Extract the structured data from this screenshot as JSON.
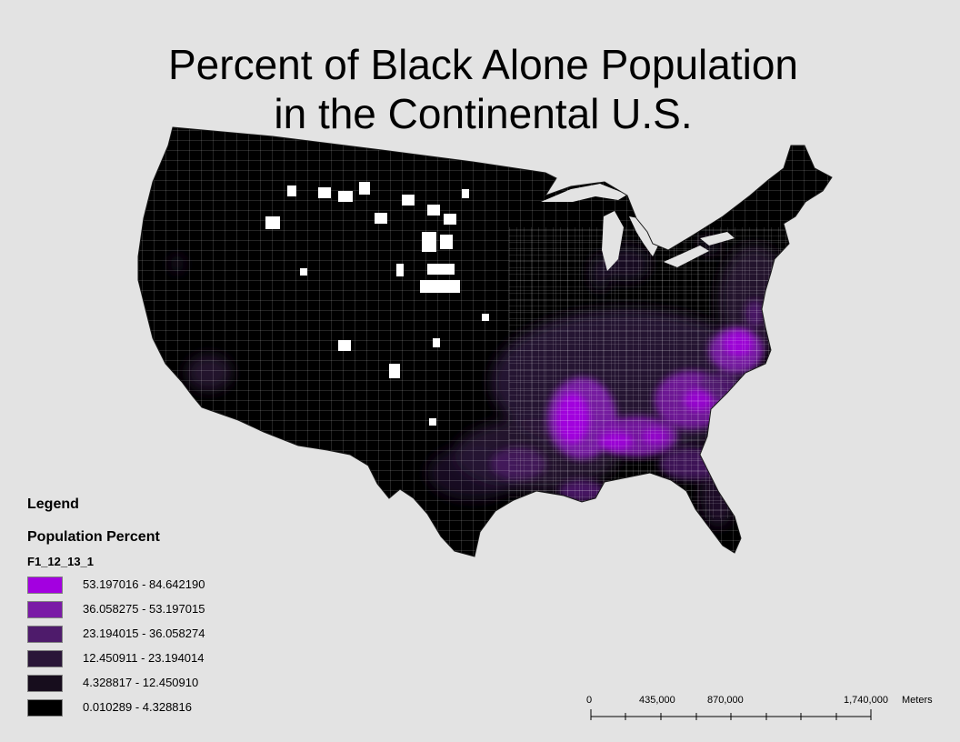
{
  "title": {
    "line1": "Percent of Black Alone Population",
    "line2": "in the Continental U.S."
  },
  "legend": {
    "title": "Legend",
    "subtitle": "Population Percent",
    "field": "F1_12_13_1",
    "classes": [
      {
        "label": "53.197016 - 84.642190",
        "color": "#a300e0"
      },
      {
        "label": "36.058275 - 53.197015",
        "color": "#7a1aa6"
      },
      {
        "label": "23.194015 - 36.058274",
        "color": "#4e1b6b"
      },
      {
        "label": "12.450911 - 23.194014",
        "color": "#2a1638"
      },
      {
        "label": "4.328817 - 12.450910",
        "color": "#170d1d"
      },
      {
        "label": "0.010289 - 4.328816",
        "color": "#000000"
      }
    ]
  },
  "scale_bar": {
    "labels": [
      "0",
      "435,000",
      "870,000",
      "1,740,000"
    ],
    "units": "Meters"
  },
  "colors": {
    "background": "#e3e3e3",
    "county_border": "#ffffff",
    "no_data": "#ffffff"
  }
}
